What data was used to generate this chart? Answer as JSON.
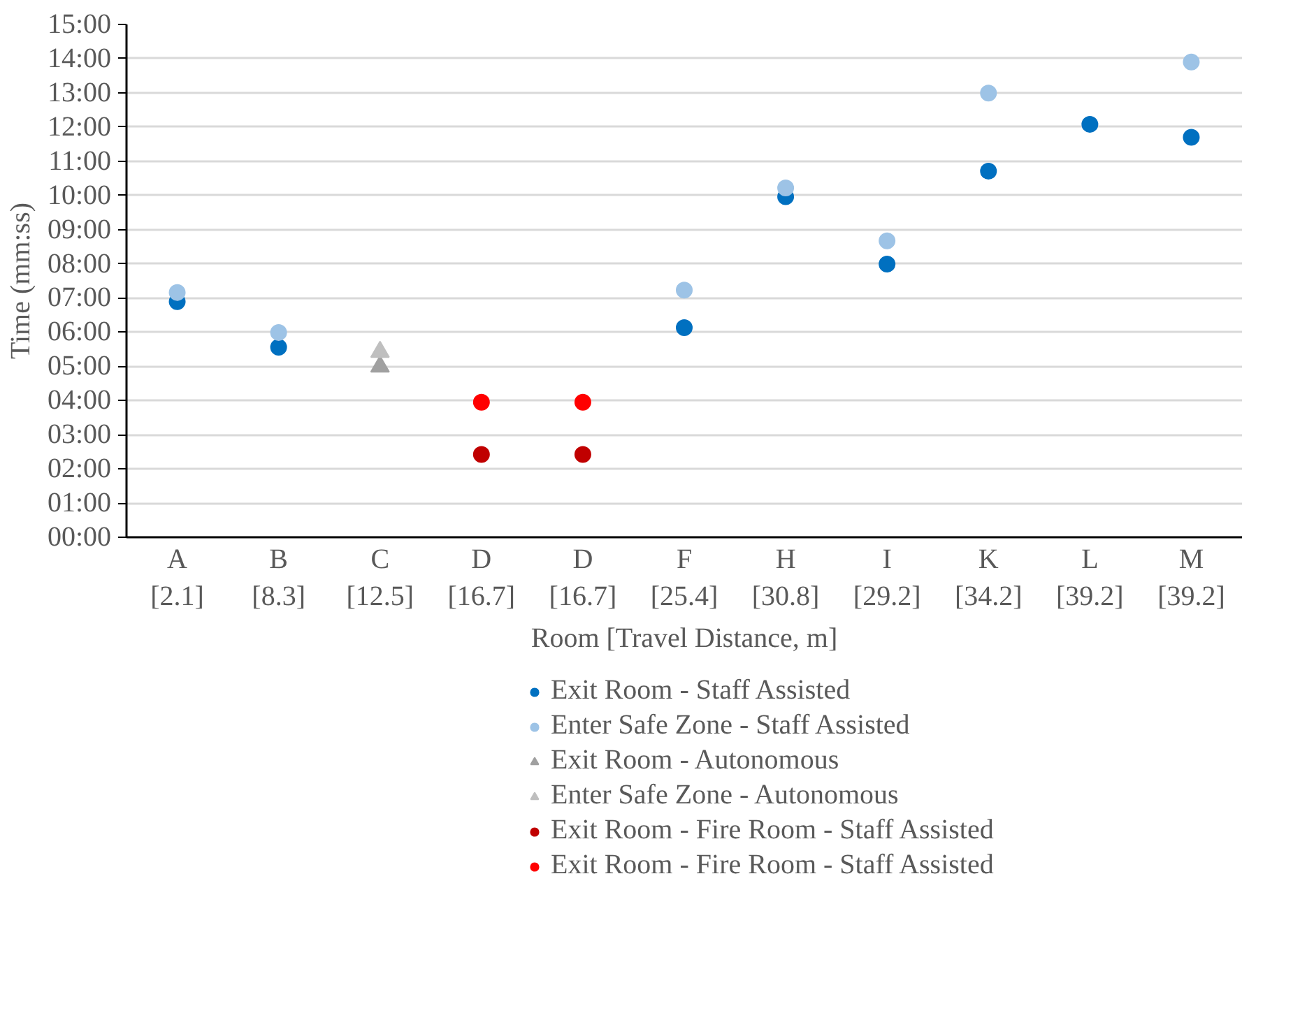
{
  "chart_data": {
    "type": "scatter",
    "xlabel": "Room [Travel Distance, m]",
    "ylabel": "Time (mm:ss)",
    "categories": [
      "A\n[2.1]",
      "B\n[8.3]",
      "C\n[12.5]",
      "D\n[16.7]",
      "D\n[16.7]",
      "F\n[25.4]",
      "H\n[30.8]",
      "I\n[29.2]",
      "K\n[34.2]",
      "L\n[39.2]",
      "M\n[39.2]"
    ],
    "ylim": [
      0,
      15
    ],
    "yticks": [
      {
        "value": 0,
        "label": "00:00"
      },
      {
        "value": 1,
        "label": "01:00"
      },
      {
        "value": 2,
        "label": "02:00"
      },
      {
        "value": 3,
        "label": "03:00"
      },
      {
        "value": 4,
        "label": "04:00"
      },
      {
        "value": 5,
        "label": "05:00"
      },
      {
        "value": 6,
        "label": "06:00"
      },
      {
        "value": 7,
        "label": "07:00"
      },
      {
        "value": 8,
        "label": "08:00"
      },
      {
        "value": 9,
        "label": "09:00"
      },
      {
        "value": 10,
        "label": "10:00"
      },
      {
        "value": 11,
        "label": "11:00"
      },
      {
        "value": 12,
        "label": "12:00"
      },
      {
        "value": 13,
        "label": "13:00"
      },
      {
        "value": 14,
        "label": "14:00"
      },
      {
        "value": 15,
        "label": "15:00"
      }
    ],
    "grid": "y",
    "legend": "bottom",
    "series": [
      {
        "name": "Exit Room - Staff Assisted",
        "color": "#0070c0",
        "marker": "circle",
        "values": [
          6.89,
          5.56,
          null,
          null,
          null,
          6.13,
          9.96,
          7.99,
          10.71,
          12.08,
          11.7
        ]
      },
      {
        "name": "Enter Safe Zone - Staff Assisted",
        "color": "#9dc3e6",
        "marker": "circle",
        "values": [
          7.16,
          5.99,
          null,
          null,
          null,
          7.23,
          10.22,
          8.67,
          12.99,
          null,
          13.9
        ]
      },
      {
        "name": "Exit Room - Autonomous",
        "color": "#a0a0a0",
        "marker": "triangle",
        "values": [
          null,
          null,
          4.99,
          null,
          null,
          null,
          null,
          null,
          null,
          null,
          null
        ]
      },
      {
        "name": "Enter Safe Zone - Autonomous",
        "color": "#bfbfbf",
        "marker": "triangle",
        "values": [
          null,
          null,
          5.42,
          null,
          null,
          null,
          null,
          null,
          null,
          null,
          null
        ]
      },
      {
        "name": "Exit Room - Fire Room - Staff Assisted",
        "color": "#c00000",
        "marker": "circle",
        "values": [
          null,
          null,
          null,
          2.42,
          2.42,
          null,
          null,
          null,
          null,
          null,
          null
        ]
      },
      {
        "name": "Exit Room - Fire Room - Staff Assisted",
        "color": "#ff0000",
        "marker": "circle",
        "values": [
          null,
          null,
          null,
          3.95,
          3.95,
          null,
          null,
          null,
          null,
          null,
          null
        ]
      }
    ]
  }
}
